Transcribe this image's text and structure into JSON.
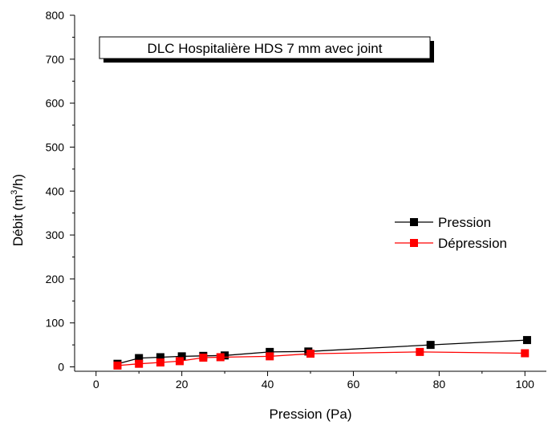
{
  "chart_data": {
    "type": "line",
    "title": "DLC Hospitalière HDS 7 mm avec joint",
    "xlabel": "Pression (Pa)",
    "ylabel_prefix": "Débit (m",
    "ylabel_sup": "3",
    "ylabel_suffix": "/h)",
    "xlim": [
      -5,
      105
    ],
    "ylim": [
      -10,
      800
    ],
    "xticks": [
      0,
      20,
      40,
      60,
      80,
      100
    ],
    "yticks": [
      0,
      100,
      200,
      300,
      400,
      500,
      600,
      700,
      800
    ],
    "grid": false,
    "legend_position": "right",
    "series": [
      {
        "name": "Pression",
        "color": "#000000",
        "marker": "square",
        "x": [
          5,
          10,
          15,
          20,
          25,
          30,
          40.5,
          49.5,
          78,
          100.5
        ],
        "y": [
          7,
          20,
          22,
          24,
          25,
          26,
          34,
          35,
          50,
          61
        ]
      },
      {
        "name": "Dépression",
        "color": "#ff0000",
        "marker": "square",
        "x": [
          5,
          10,
          15,
          19.5,
          25,
          29,
          40.5,
          50,
          75.5,
          100
        ],
        "y": [
          3,
          7,
          10,
          13,
          21,
          22,
          24,
          30,
          34,
          31
        ]
      }
    ]
  }
}
